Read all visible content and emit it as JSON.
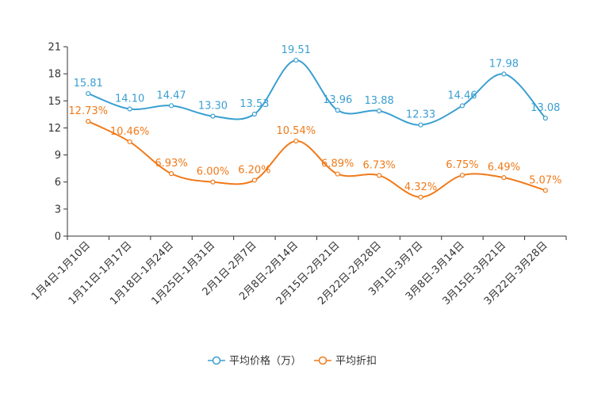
{
  "chart_data": {
    "type": "line",
    "title": "",
    "xlabel": "",
    "ylabel": "",
    "ylim": [
      0,
      21
    ],
    "yticks": [
      0,
      3,
      6,
      9,
      12,
      15,
      18,
      21
    ],
    "grid": false,
    "legend_position": "bottom-center",
    "categories": [
      "1月4日-1月10日",
      "1月11日-1月17日",
      "1月18日-1月24日",
      "1月25日-1月31日",
      "2月1日-2月7日",
      "2月8日-2月14日",
      "2月15日-2月21日",
      "2月22日-2月28日",
      "3月1日-3月7日",
      "3月8日-3月14日",
      "3月15日-3月21日",
      "3月22日-3月28日"
    ],
    "series": [
      {
        "name": "平均价格（万）",
        "color": "#3a9fd1",
        "values": [
          15.81,
          14.1,
          14.47,
          13.3,
          13.53,
          19.51,
          13.96,
          13.88,
          12.33,
          14.46,
          17.98,
          13.08
        ],
        "labels": [
          "15.81",
          "14.10",
          "14.47",
          "13.30",
          "13.53",
          "19.51",
          "13.96",
          "13.88",
          "12.33",
          "14.46",
          "17.98",
          "13.08"
        ]
      },
      {
        "name": "平均折扣",
        "color": "#f07a1a",
        "values": [
          12.73,
          10.46,
          6.93,
          6.0,
          6.2,
          10.54,
          6.89,
          6.73,
          4.32,
          6.75,
          6.49,
          5.07
        ],
        "labels": [
          "12.73%",
          "10.46%",
          "6.93%",
          "6.00%",
          "6.20%",
          "10.54%",
          "6.89%",
          "6.73%",
          "4.32%",
          "6.75%",
          "6.49%",
          "5.07%"
        ]
      }
    ]
  }
}
